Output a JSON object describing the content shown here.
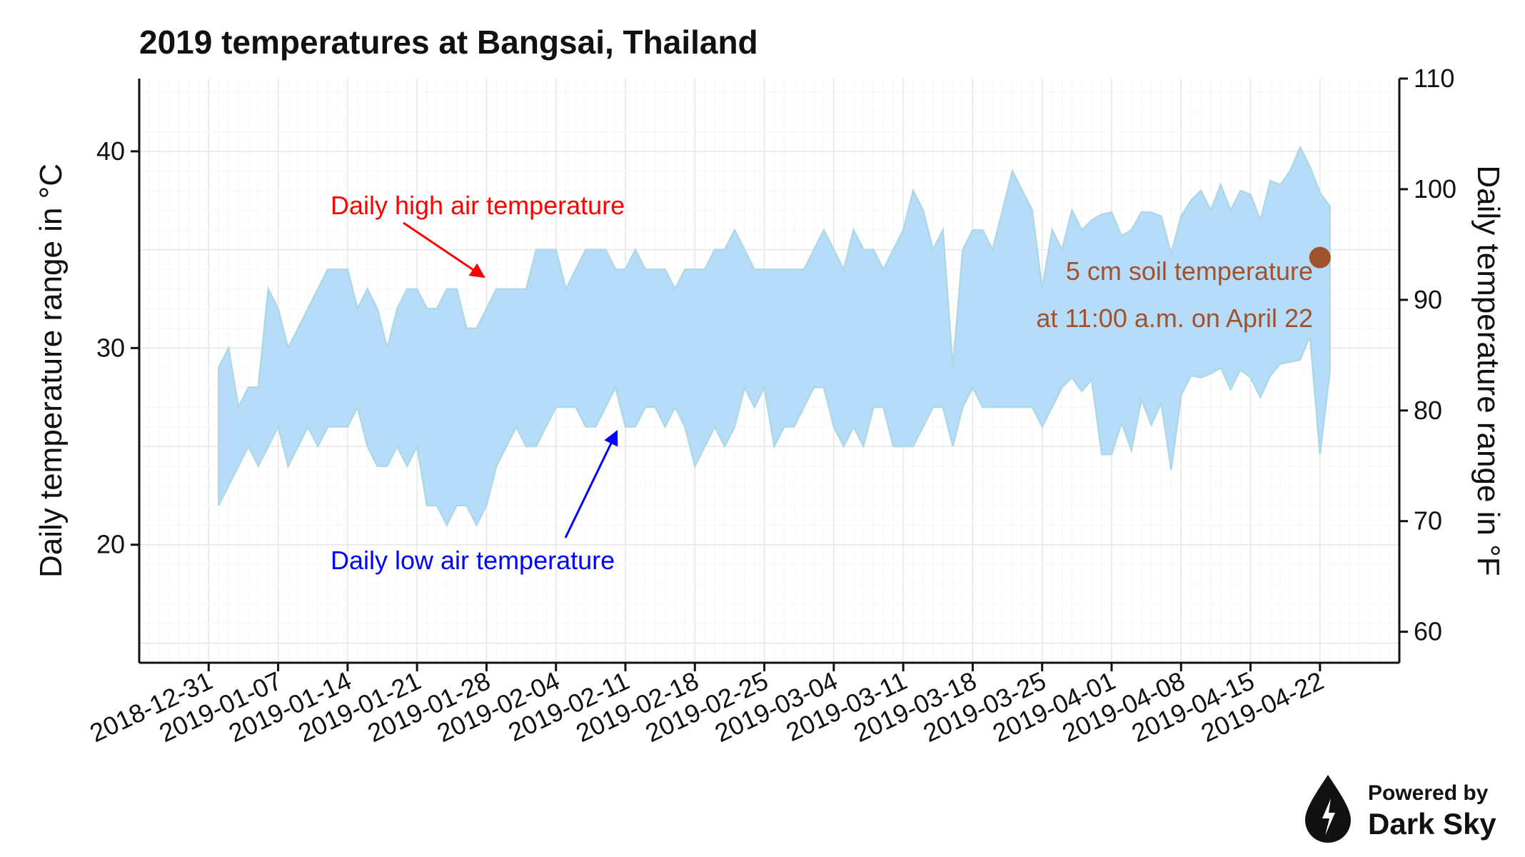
{
  "chart_data": {
    "type": "area",
    "title": "2019 temperatures at Bangsai, Thailand",
    "ylabel": "Daily temperature range in °C",
    "ylabel_right": "Daily temperature range in °F",
    "ylim": [
      14,
      43.7
    ],
    "ylim_right": [
      57.2,
      110
    ],
    "yticks": [
      20,
      30,
      40
    ],
    "yticks_right": [
      60,
      70,
      80,
      90,
      100,
      110
    ],
    "xlim": [
      "2018-12-24",
      "2019-04-30"
    ],
    "xtick_labels": [
      "2018-12-31",
      "2019-01-07",
      "2019-01-14",
      "2019-01-21",
      "2019-01-28",
      "2019-02-04",
      "2019-02-11",
      "2019-02-18",
      "2019-02-25",
      "2019-03-04",
      "2019-03-11",
      "2019-03-18",
      "2019-03-25",
      "2019-04-01",
      "2019-04-08",
      "2019-04-15",
      "2019-04-22"
    ],
    "grid": true,
    "fill_color": "#b7dcfa",
    "edge_color": "#add8e6",
    "dates": [
      "2019-01-01",
      "2019-01-02",
      "2019-01-03",
      "2019-01-04",
      "2019-01-05",
      "2019-01-06",
      "2019-01-07",
      "2019-01-08",
      "2019-01-09",
      "2019-01-10",
      "2019-01-11",
      "2019-01-12",
      "2019-01-13",
      "2019-01-14",
      "2019-01-15",
      "2019-01-16",
      "2019-01-17",
      "2019-01-18",
      "2019-01-19",
      "2019-01-20",
      "2019-01-21",
      "2019-01-22",
      "2019-01-23",
      "2019-01-24",
      "2019-01-25",
      "2019-01-26",
      "2019-01-27",
      "2019-01-28",
      "2019-01-29",
      "2019-01-30",
      "2019-01-31",
      "2019-02-01",
      "2019-02-02",
      "2019-02-03",
      "2019-02-04",
      "2019-02-05",
      "2019-02-06",
      "2019-02-07",
      "2019-02-08",
      "2019-02-09",
      "2019-02-10",
      "2019-02-11",
      "2019-02-12",
      "2019-02-13",
      "2019-02-14",
      "2019-02-15",
      "2019-02-16",
      "2019-02-17",
      "2019-02-18",
      "2019-02-19",
      "2019-02-20",
      "2019-02-21",
      "2019-02-22",
      "2019-02-23",
      "2019-02-24",
      "2019-02-25",
      "2019-02-26",
      "2019-02-27",
      "2019-02-28",
      "2019-03-01",
      "2019-03-02",
      "2019-03-03",
      "2019-03-04",
      "2019-03-05",
      "2019-03-06",
      "2019-03-07",
      "2019-03-08",
      "2019-03-09",
      "2019-03-10",
      "2019-03-11",
      "2019-03-12",
      "2019-03-13",
      "2019-03-14",
      "2019-03-15",
      "2019-03-16",
      "2019-03-17",
      "2019-03-18",
      "2019-03-19",
      "2019-03-20",
      "2019-03-21",
      "2019-03-22",
      "2019-03-23",
      "2019-03-24",
      "2019-03-25",
      "2019-03-26",
      "2019-03-27",
      "2019-03-28",
      "2019-03-29",
      "2019-03-30",
      "2019-03-31",
      "2019-04-01",
      "2019-04-02",
      "2019-04-03",
      "2019-04-04",
      "2019-04-05",
      "2019-04-06",
      "2019-04-07",
      "2019-04-08",
      "2019-04-09",
      "2019-04-10",
      "2019-04-11",
      "2019-04-12",
      "2019-04-13",
      "2019-04-14",
      "2019-04-15",
      "2019-04-16",
      "2019-04-17",
      "2019-04-18",
      "2019-04-19",
      "2019-04-20",
      "2019-04-21",
      "2019-04-22",
      "2019-04-23"
    ],
    "series": [
      {
        "name": "Daily high air temperature",
        "values": [
          29,
          30,
          27,
          28,
          28,
          33,
          32,
          30,
          31,
          32,
          33,
          34,
          34,
          34,
          32,
          33,
          32,
          30,
          32,
          33,
          33,
          32,
          32,
          33,
          33,
          31,
          31,
          32,
          33,
          33,
          33,
          33,
          35,
          35,
          35,
          33,
          34,
          35,
          35,
          35,
          34,
          34,
          35,
          34,
          34,
          34,
          33,
          34,
          34,
          34,
          35,
          35,
          36,
          35,
          34,
          34,
          34,
          34,
          34,
          34,
          35,
          36,
          35,
          34,
          36,
          35,
          35,
          34,
          35,
          36,
          38,
          37,
          35,
          36,
          29,
          35,
          36,
          36,
          35,
          37,
          39,
          38,
          37,
          33,
          36,
          35,
          37,
          36,
          36.5,
          36.8,
          36.9,
          35.7,
          36,
          36.9,
          36.9,
          36.7,
          34.8,
          36.7,
          37.5,
          38,
          37,
          38.3,
          37,
          38,
          37.8,
          36.5,
          38.5,
          38.3,
          39,
          40.2,
          39.2,
          37.9,
          37.2
        ]
      },
      {
        "name": "Daily low air temperature",
        "values": [
          22,
          23,
          24,
          25,
          24,
          25,
          26,
          24,
          25,
          26,
          25,
          26,
          26,
          26,
          27,
          25,
          24,
          24,
          25,
          24,
          25,
          22,
          22,
          21,
          22,
          22,
          21,
          22,
          24,
          25,
          26,
          25,
          25,
          26,
          27,
          27,
          27,
          26,
          26,
          27,
          28,
          26,
          26,
          27,
          27,
          26,
          27,
          26,
          24,
          25,
          26,
          25,
          26,
          28,
          27,
          28,
          25,
          26,
          26,
          27,
          28,
          28,
          26,
          25,
          26,
          25,
          27,
          27,
          25,
          25,
          25,
          26,
          27,
          27,
          25,
          27,
          28,
          27,
          27,
          27,
          27,
          27,
          27,
          26,
          27,
          28,
          28.5,
          27.8,
          28.4,
          24.6,
          24.6,
          26.2,
          24.8,
          27.4,
          26.1,
          27.2,
          23.8,
          27.6,
          28.6,
          28.5,
          28.7,
          29,
          27.9,
          28.9,
          28.5,
          27.5,
          28.6,
          29.2,
          29.3,
          29.4,
          30.6,
          24.6,
          28.8
        ]
      }
    ],
    "soil_point": {
      "date": "2019-04-22",
      "value_c": 34.6,
      "color": "#a0522d"
    },
    "annotations": {
      "high_label": "Daily high air temperature",
      "low_label": "Daily low air temperature",
      "soil_line1": "5 cm soil temperature",
      "soil_line2": "at 11:00 a.m. on April 22",
      "high_color": "#ff0000",
      "low_color": "#0000ff",
      "soil_color": "#a0522d"
    }
  },
  "branding": {
    "line1": "Powered by",
    "line2": "Dark Sky",
    "icon": "dark-sky-raindrop-icon"
  }
}
